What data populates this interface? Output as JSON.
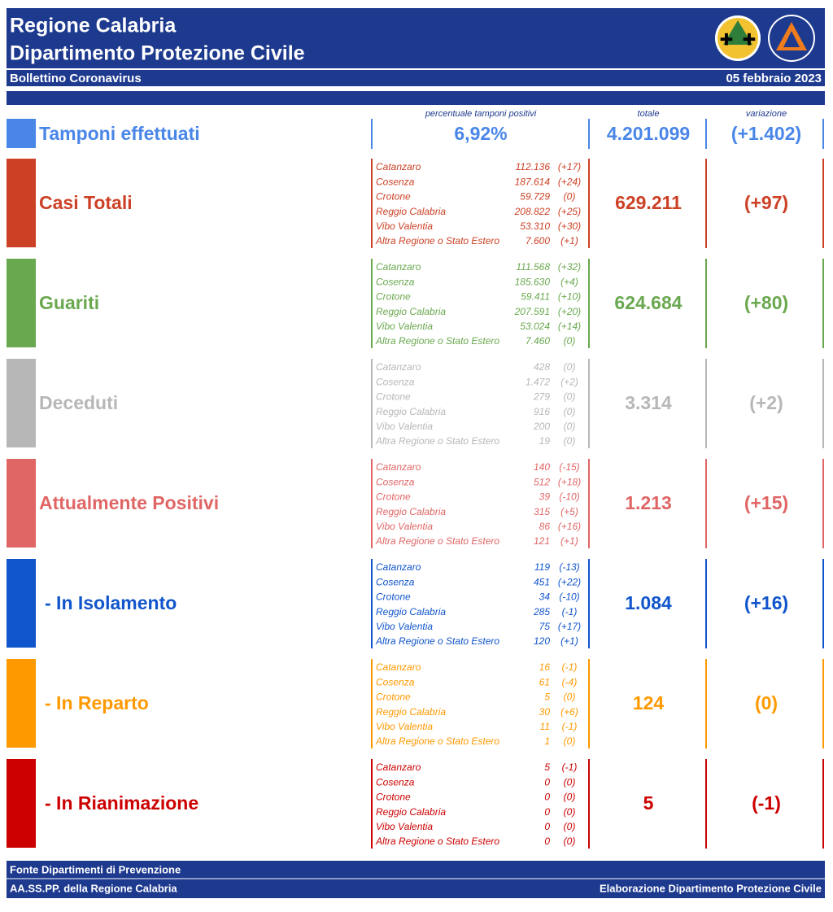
{
  "header": {
    "title": "Regione Calabria",
    "subtitle": "Dipartimento Protezione Civile",
    "bulletin": "Bollettino Coronavirus",
    "date": "05 febbraio 2023"
  },
  "tamponi": {
    "label": "Tamponi effettuati",
    "color": "#4a86e8",
    "pct_caption": "percentuale tamponi positivi",
    "pct": "6,92%",
    "total_caption": "totale",
    "total": "4.201.099",
    "variation_caption": "variazione",
    "variation": "(+1.402)"
  },
  "sections": [
    {
      "label": "Casi Totali",
      "color": "#cc4125",
      "total": "629.211",
      "variation": "(+97)",
      "rows": [
        [
          "Catanzaro",
          "112.136",
          "(+17)"
        ],
        [
          "Cosenza",
          "187.614",
          "(+24)"
        ],
        [
          "Crotone",
          "59.729",
          "(0)"
        ],
        [
          "Reggio Calabria",
          "208.822",
          "(+25)"
        ],
        [
          "Vibo Valentia",
          "53.310",
          "(+30)"
        ],
        [
          "Altra Regione o Stato Estero",
          "7.600",
          "(+1)"
        ]
      ]
    },
    {
      "label": "Guariti",
      "color": "#6aa84f",
      "total": "624.684",
      "variation": "(+80)",
      "rows": [
        [
          "Catanzaro",
          "111.568",
          "(+32)"
        ],
        [
          "Cosenza",
          "185.630",
          "(+4)"
        ],
        [
          "Crotone",
          "59.411",
          "(+10)"
        ],
        [
          "Reggio Calabria",
          "207.591",
          "(+20)"
        ],
        [
          "Vibo Valentia",
          "53.024",
          "(+14)"
        ],
        [
          "Altra Regione o Stato Estero",
          "7.460",
          "(0)"
        ]
      ]
    },
    {
      "label": "Deceduti",
      "color": "#b7b7b7",
      "total": "3.314",
      "variation": "(+2)",
      "rows": [
        [
          "Catanzaro",
          "428",
          "(0)"
        ],
        [
          "Cosenza",
          "1.472",
          "(+2)"
        ],
        [
          "Crotone",
          "279",
          "(0)"
        ],
        [
          "Reggio Calabria",
          "916",
          "(0)"
        ],
        [
          "Vibo Valentia",
          "200",
          "(0)"
        ],
        [
          "Altra Regione o Stato Estero",
          "19",
          "(0)"
        ]
      ]
    },
    {
      "label": "Attualmente Positivi",
      "color": "#e06666",
      "total": "1.213",
      "variation": "(+15)",
      "rows": [
        [
          "Catanzaro",
          "140",
          "(-15)"
        ],
        [
          "Cosenza",
          "512",
          "(+18)"
        ],
        [
          "Crotone",
          "39",
          "(-10)"
        ],
        [
          "Reggio Calabria",
          "315",
          "(+5)"
        ],
        [
          "Vibo Valentia",
          "86",
          "(+16)"
        ],
        [
          "Altra Regione o Stato Estero",
          "121",
          "(+1)"
        ]
      ]
    },
    {
      "label": "- In Isolamento",
      "color": "#1155cc",
      "total": "1.084",
      "variation": "(+16)",
      "rows": [
        [
          "Catanzaro",
          "119",
          "(-13)"
        ],
        [
          "Cosenza",
          "451",
          "(+22)"
        ],
        [
          "Crotone",
          "34",
          "(-10)"
        ],
        [
          "Reggio Calabria",
          "285",
          "(-1)"
        ],
        [
          "Vibo Valentia",
          "75",
          "(+17)"
        ],
        [
          "Altra Regione o Stato Estero",
          "120",
          "(+1)"
        ]
      ]
    },
    {
      "label": "- In Reparto",
      "color": "#ff9900",
      "total": "124",
      "variation": "(0)",
      "rows": [
        [
          "Catanzaro",
          "16",
          "(-1)"
        ],
        [
          "Cosenza",
          "61",
          "(-4)"
        ],
        [
          "Crotone",
          "5",
          "(0)"
        ],
        [
          "Reggio Calabria",
          "30",
          "(+6)"
        ],
        [
          "Vibo Valentia",
          "11",
          "(-1)"
        ],
        [
          "Altra Regione o Stato Estero",
          "1",
          "(0)"
        ]
      ]
    },
    {
      "label": "- In Rianimazione",
      "color": "#cc0000",
      "total": "5",
      "variation": "(-1)",
      "rows": [
        [
          "Catanzaro",
          "5",
          "(-1)"
        ],
        [
          "Cosenza",
          "0",
          "(0)"
        ],
        [
          "Crotone",
          "0",
          "(0)"
        ],
        [
          "Reggio Calabria",
          "0",
          "(0)"
        ],
        [
          "Vibo Valentia",
          "0",
          "(0)"
        ],
        [
          "Altra Regione o Stato Estero",
          "0",
          "(0)"
        ]
      ]
    }
  ],
  "footer": {
    "source_1": "Fonte Dipartimenti di Prevenzione",
    "source_2": "AA.SS.PP.  della Regione Calabria",
    "credit": "Elaborazione Dipartimento Protezione Civile"
  }
}
